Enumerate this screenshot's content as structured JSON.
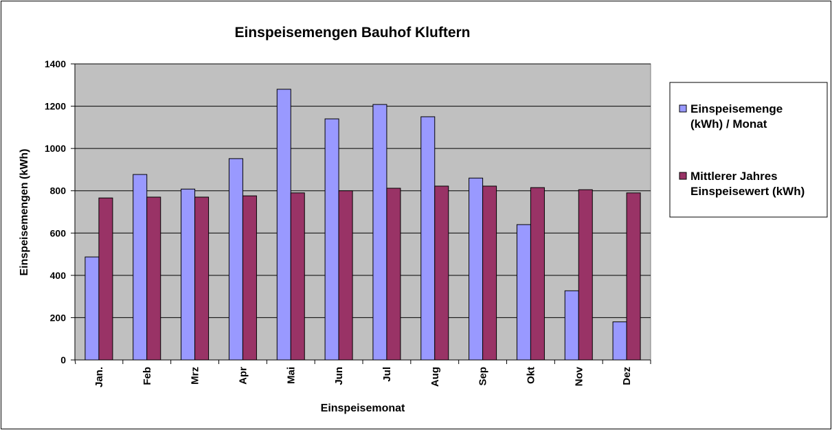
{
  "chart_data": {
    "type": "bar",
    "title": "Einspeisemengen Bauhof Kluftern",
    "xlabel": "Einspeisemonat",
    "ylabel": "Einspeisemengen (kWh)",
    "categories": [
      "Jan.",
      "Feb",
      "Mrz",
      "Apr",
      "Mai",
      "Jun",
      "Jul",
      "Aug",
      "Sep",
      "Okt",
      "Nov",
      "Dez"
    ],
    "series": [
      {
        "name": "Einspeisemenge (kWh) / Monat",
        "legend_lines": [
          "Einspeisemenge",
          "(kWh) / Monat"
        ],
        "color": "#9999ff",
        "values": [
          487,
          877,
          808,
          952,
          1280,
          1140,
          1208,
          1150,
          860,
          640,
          327,
          180
        ]
      },
      {
        "name": "Mittlerer Jahres Einspeisewert (kWh)",
        "legend_lines": [
          "Mittlerer Jahres",
          "Einspeisewert (kWh)"
        ],
        "color": "#993366",
        "values": [
          766,
          770,
          770,
          776,
          790,
          800,
          812,
          822,
          822,
          815,
          805,
          790
        ]
      }
    ],
    "ylim": [
      0,
      1400
    ],
    "yticks": [
      0,
      200,
      400,
      600,
      800,
      1000,
      1200,
      1400
    ],
    "grid": true,
    "plot_background": "#c0c0c0",
    "legend_position": "right"
  }
}
